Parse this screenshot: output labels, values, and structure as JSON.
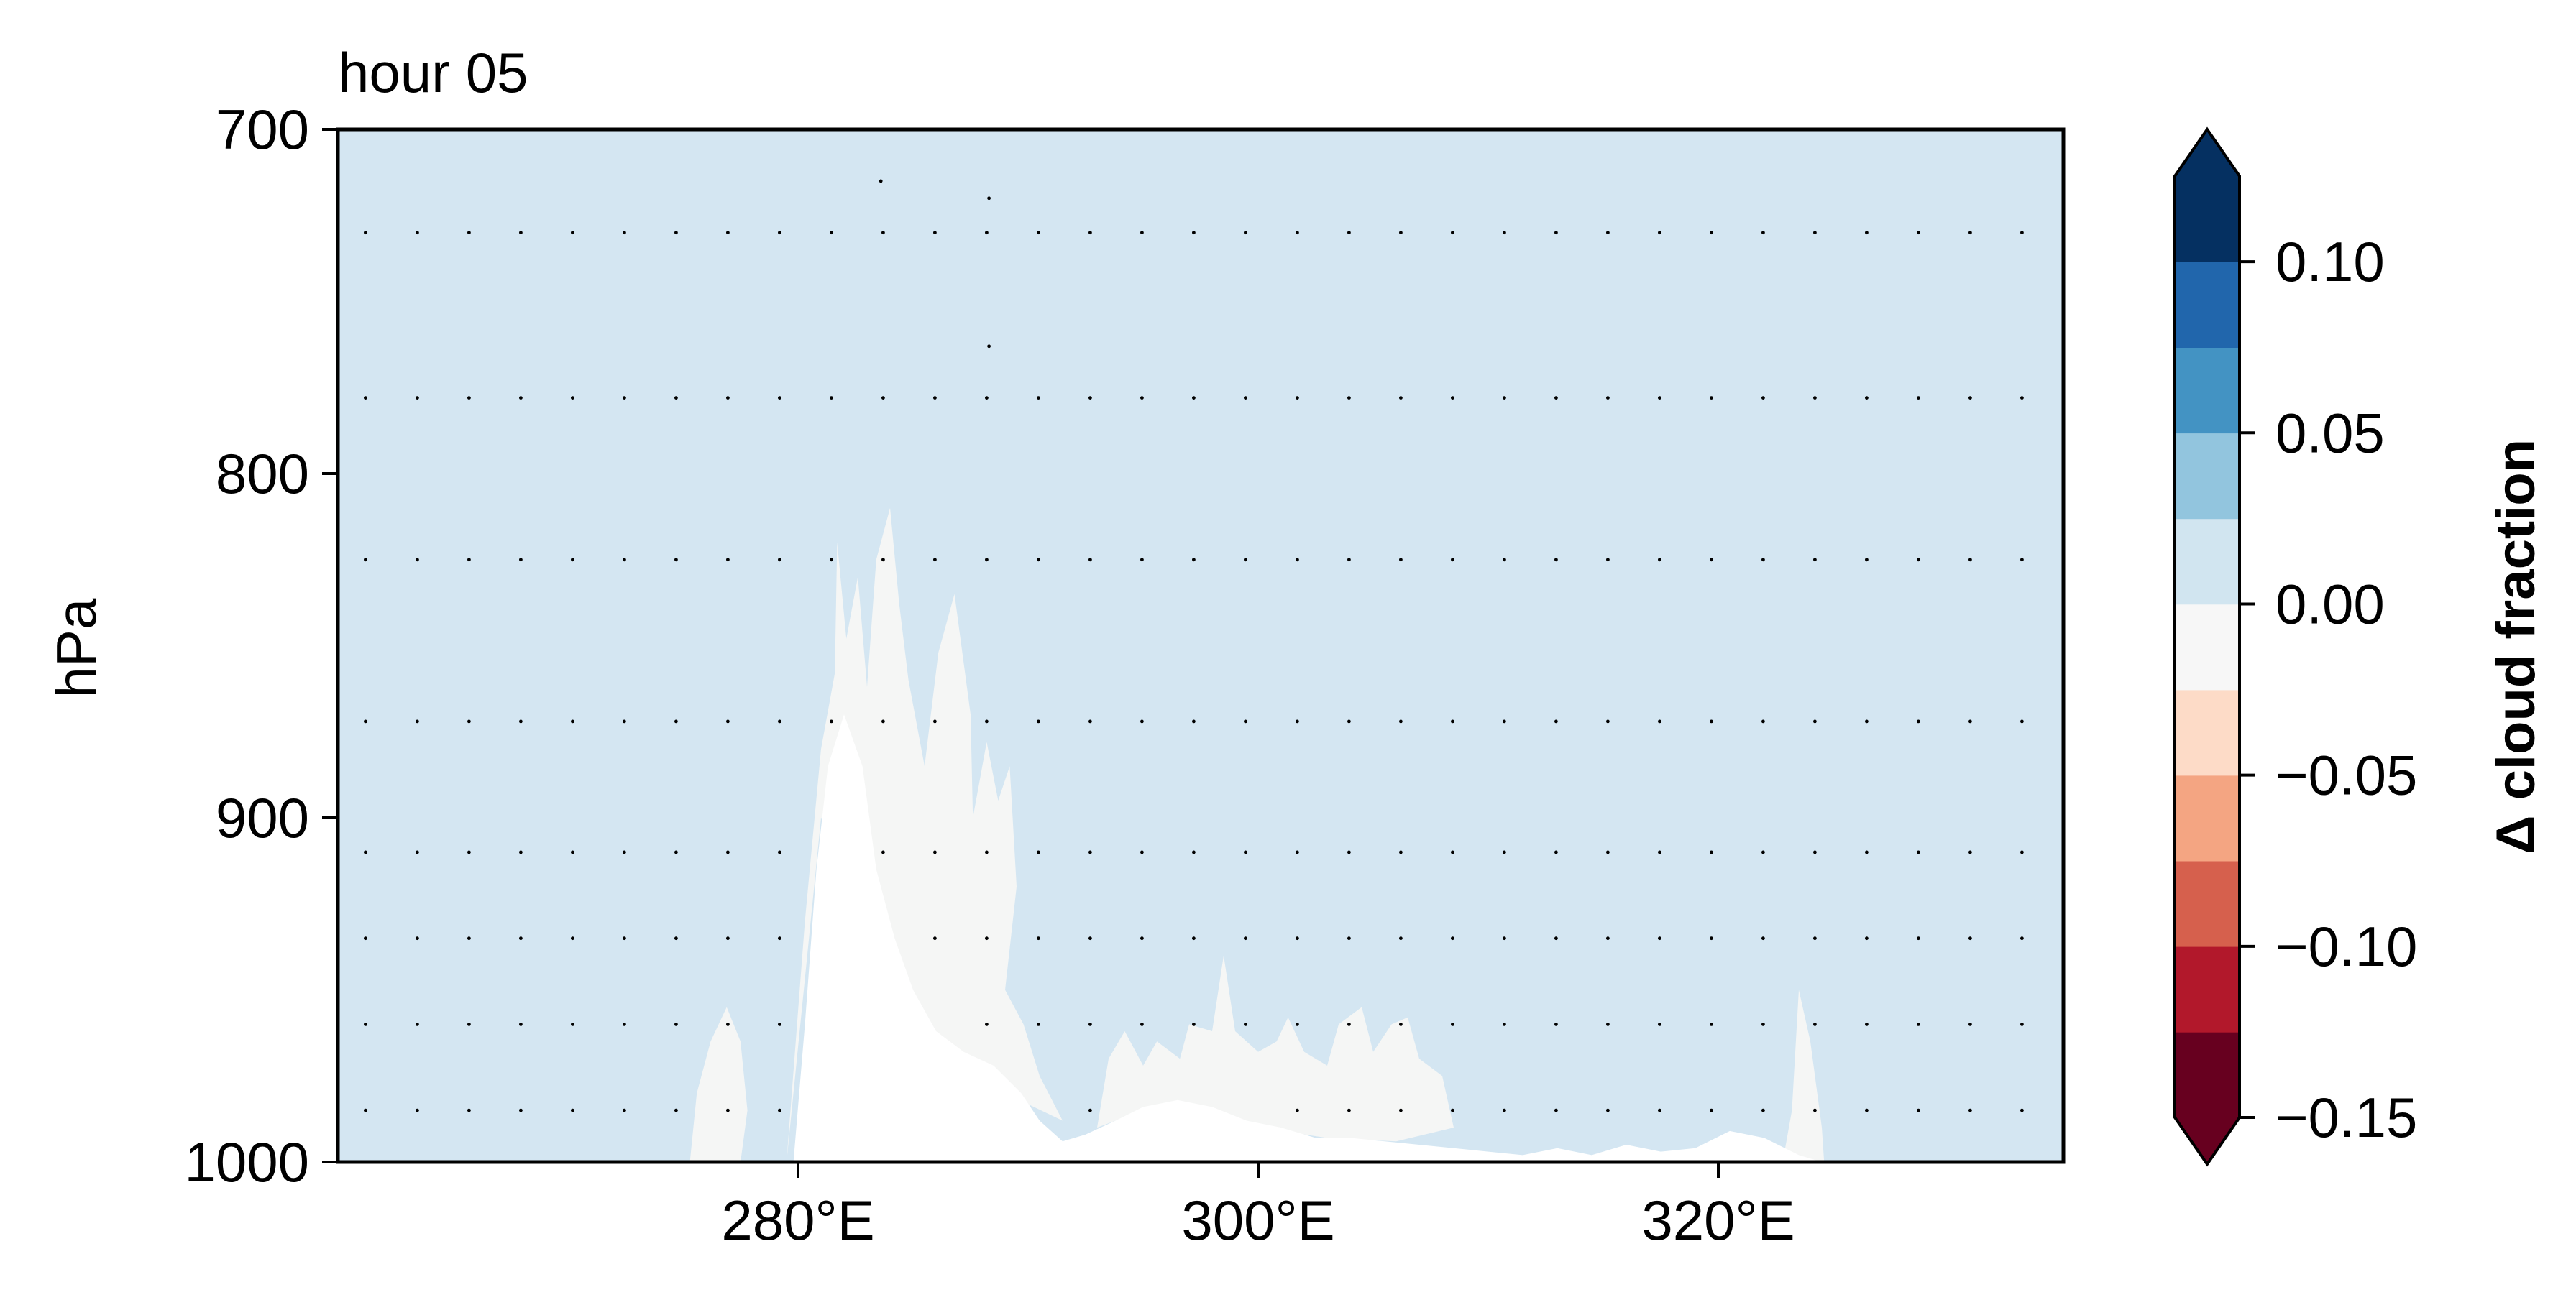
{
  "chart_data": {
    "type": "contour",
    "title": "hour 05",
    "xlabel": "",
    "ylabel": "hPa",
    "x_unit": "°E",
    "xlim": [
      260,
      335
    ],
    "ylim": [
      1000,
      700
    ],
    "y_inverted": true,
    "x_ticks": [
      280,
      300,
      320
    ],
    "x_tick_labels": [
      "280°E",
      "300°E",
      "320°E"
    ],
    "y_ticks": [
      700,
      800,
      900,
      1000
    ],
    "y_tick_labels": [
      "700",
      "800",
      "900",
      "1000"
    ],
    "background_level": "0.00 to 0.025",
    "terrain_mask": [
      [
        279.8,
        1000
      ],
      [
        280.3,
        960
      ],
      [
        280.8,
        915
      ],
      [
        281.3,
        885
      ],
      [
        282.0,
        870
      ],
      [
        282.8,
        885
      ],
      [
        283.4,
        915
      ],
      [
        284.2,
        935
      ],
      [
        285.0,
        950
      ],
      [
        286.0,
        962
      ],
      [
        287.2,
        968
      ],
      [
        288.5,
        972
      ],
      [
        289.7,
        980
      ],
      [
        290.5,
        988
      ],
      [
        291.5,
        994
      ],
      [
        292.5,
        992
      ],
      [
        293.8,
        988
      ],
      [
        295.0,
        984
      ],
      [
        296.5,
        982
      ],
      [
        298.0,
        984
      ],
      [
        299.5,
        988
      ],
      [
        301.0,
        990
      ],
      [
        302.5,
        993
      ],
      [
        304.0,
        993
      ],
      [
        305.5,
        994
      ],
      [
        307.0,
        995
      ],
      [
        308.5,
        996
      ],
      [
        310.0,
        997
      ],
      [
        311.5,
        998
      ],
      [
        313.0,
        996
      ],
      [
        314.5,
        998
      ],
      [
        316.0,
        995
      ],
      [
        317.5,
        997
      ],
      [
        319.0,
        996
      ],
      [
        320.5,
        991
      ],
      [
        322.0,
        993
      ],
      [
        323.5,
        998
      ],
      [
        324.5,
        1000
      ]
    ],
    "near_zero_regions": [
      [
        [
          275.3,
          1000
        ],
        [
          275.6,
          980
        ],
        [
          276.2,
          965
        ],
        [
          276.9,
          955
        ],
        [
          277.5,
          965
        ],
        [
          277.8,
          985
        ],
        [
          277.5,
          1000
        ]
      ],
      [
        [
          279.5,
          1000
        ],
        [
          280.3,
          930
        ],
        [
          281.0,
          880
        ],
        [
          281.6,
          858
        ],
        [
          281.7,
          820
        ],
        [
          282.1,
          848
        ],
        [
          282.6,
          830
        ],
        [
          283.0,
          862
        ],
        [
          283.4,
          825
        ],
        [
          284.0,
          810
        ],
        [
          284.4,
          838
        ],
        [
          284.8,
          860
        ],
        [
          285.5,
          885
        ],
        [
          286.1,
          852
        ],
        [
          286.8,
          835
        ],
        [
          287.5,
          870
        ],
        [
          287.6,
          900
        ],
        [
          288.2,
          878
        ],
        [
          288.7,
          895
        ],
        [
          289.2,
          885
        ],
        [
          289.5,
          920
        ],
        [
          289.0,
          950
        ],
        [
          289.8,
          960
        ],
        [
          290.5,
          975
        ],
        [
          291.5,
          988
        ],
        [
          289.0,
          980
        ],
        [
          286.0,
          966
        ],
        [
          283.0,
          930
        ],
        [
          281.0,
          900
        ]
      ],
      [
        [
          293.0,
          990
        ],
        [
          293.5,
          970
        ],
        [
          294.2,
          962
        ],
        [
          295.0,
          972
        ],
        [
          295.6,
          965
        ],
        [
          296.6,
          970
        ],
        [
          297.0,
          960
        ],
        [
          298.0,
          962
        ],
        [
          298.5,
          940
        ],
        [
          299.0,
          962
        ],
        [
          300.0,
          968
        ],
        [
          300.8,
          965
        ],
        [
          301.3,
          958
        ],
        [
          302.0,
          968
        ],
        [
          303.0,
          972
        ],
        [
          303.5,
          960
        ],
        [
          304.5,
          955
        ],
        [
          305.0,
          968
        ],
        [
          305.8,
          960
        ],
        [
          306.5,
          958
        ],
        [
          307.0,
          970
        ],
        [
          308.0,
          975
        ],
        [
          308.5,
          990
        ],
        [
          306.0,
          994
        ],
        [
          303.0,
          993
        ],
        [
          300.0,
          990
        ],
        [
          297.0,
          983
        ],
        [
          295.0,
          985
        ]
      ],
      [
        [
          322.8,
          1000
        ],
        [
          323.2,
          985
        ],
        [
          323.5,
          950
        ],
        [
          324.0,
          965
        ],
        [
          324.5,
          990
        ],
        [
          324.6,
          1000
        ]
      ]
    ],
    "stippling": "significance dots over most of the domain",
    "colorbar": {
      "label": "Δ cloud fraction",
      "levels": [
        -0.15,
        -0.125,
        -0.1,
        -0.075,
        -0.05,
        -0.025,
        0.0,
        0.025,
        0.05,
        0.075,
        0.1,
        0.125
      ],
      "ticks": [
        -0.15,
        -0.1,
        -0.05,
        0.0,
        0.05,
        0.1
      ],
      "tick_labels": [
        "−0.15",
        "−0.10",
        "−0.05",
        "0.00",
        "0.05",
        "0.10"
      ],
      "colors": [
        "#67001f",
        "#b2182b",
        "#d6604d",
        "#f4a582",
        "#fddbc7",
        "#f7f7f7",
        "#d1e5f0",
        "#92c5de",
        "#4393c3",
        "#2166ac",
        "#053061"
      ],
      "extend": "both",
      "under_color": "#67001f",
      "over_color": "#053061",
      "cmap": "RdBu_r"
    }
  },
  "colors": {
    "background_fill": "#d4e6f2",
    "near_zero_fill": "#f5f6f5",
    "terrain_fill": "#ffffff",
    "dot_color": "#000000"
  }
}
